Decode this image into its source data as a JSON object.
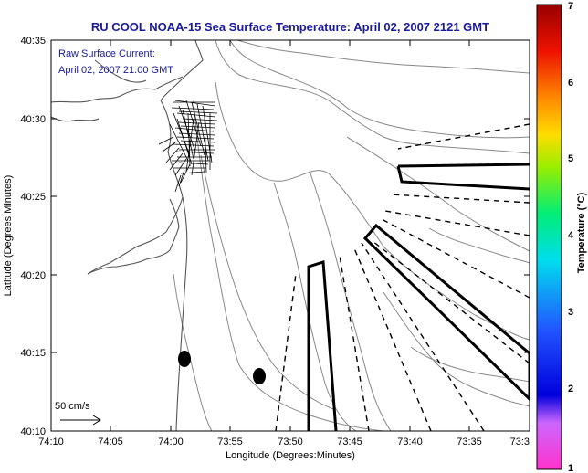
{
  "title": "RU COOL  NOAA-15  Sea Surface Temperature:  April 02, 2007 2121 GMT",
  "current_label_line1": "Raw Surface Current:",
  "current_label_line2": "April 02, 2007 21:00 GMT",
  "scale_label": "50 cm/s",
  "xlabel": "Longitude (Degrees:Minutes)",
  "ylabel": "Latitude (Degrees:Minutes)",
  "x_ticks": [
    "74:10",
    "74:05",
    "74:00",
    "73:55",
    "73:50",
    "73:45",
    "73:40",
    "73:35",
    "73:3"
  ],
  "y_ticks": [
    "40:35",
    "40:30",
    "40:25",
    "40:20",
    "40:15",
    "40:10"
  ],
  "colorbar": {
    "label": "Temperature (°C)",
    "ticks": [
      "1",
      "2",
      "3",
      "4",
      "5",
      "6",
      "7"
    ],
    "range": [
      1,
      7
    ]
  },
  "colors": {
    "title_text": "#1a1a99",
    "frame": "#000000",
    "contour": "#888888",
    "coast": "#555555"
  }
}
